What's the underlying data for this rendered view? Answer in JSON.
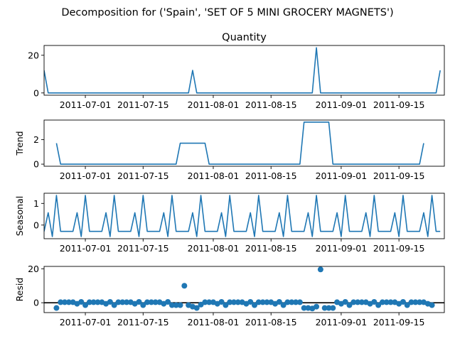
{
  "figure": {
    "suptitle": "Decomposition for ('Spain', 'SET OF 5 MINI GROCERY MAGNETS')"
  },
  "colors": {
    "line": "#1f77b4",
    "marker": "#1f77b4",
    "zero_line": "#000000",
    "axes": "#000000"
  },
  "chart_data": [
    {
      "type": "line",
      "title": "Quantity",
      "ylabel": "",
      "x_start": "2011-06-21",
      "x_step_days": 1,
      "xlim": [
        "2011-06-21",
        "2011-09-26"
      ],
      "ylim": [
        -1.2,
        25.2
      ],
      "yticks": [
        0,
        20
      ],
      "ytick_labels": [
        "0",
        "20"
      ],
      "xticks": [
        "2011-07-01",
        "2011-07-15",
        "2011-08-01",
        "2011-08-15",
        "2011-09-01",
        "2011-09-15"
      ],
      "xtick_labels": [
        "2011-07-01",
        "2011-07-15",
        "2011-08-01",
        "2011-08-15",
        "2011-09-01",
        "2011-09-15"
      ],
      "values": [
        12,
        0,
        0,
        0,
        0,
        0,
        0,
        0,
        0,
        0,
        0,
        0,
        0,
        0,
        0,
        0,
        0,
        0,
        0,
        0,
        0,
        0,
        0,
        0,
        0,
        0,
        0,
        0,
        0,
        0,
        0,
        0,
        0,
        0,
        0,
        0,
        12,
        0,
        0,
        0,
        0,
        0,
        0,
        0,
        0,
        0,
        0,
        0,
        0,
        0,
        0,
        0,
        0,
        0,
        0,
        0,
        0,
        0,
        0,
        0,
        0,
        0,
        0,
        0,
        0,
        0,
        24,
        0,
        0,
        0,
        0,
        0,
        0,
        0,
        0,
        0,
        0,
        0,
        0,
        0,
        0,
        0,
        0,
        0,
        0,
        0,
        0,
        0,
        0,
        0,
        0,
        0,
        0,
        0,
        0,
        0,
        12
      ]
    },
    {
      "type": "line",
      "title": "",
      "ylabel": "Trend",
      "x_start": "2011-06-21",
      "x_step_days": 1,
      "xlim": [
        "2011-06-21",
        "2011-09-26"
      ],
      "ylim": [
        -0.17,
        3.6
      ],
      "yticks": [
        0,
        2
      ],
      "ytick_labels": [
        "0",
        "2"
      ],
      "xticks": [
        "2011-07-01",
        "2011-07-15",
        "2011-08-01",
        "2011-08-15",
        "2011-09-01",
        "2011-09-15"
      ],
      "xtick_labels": [
        "2011-07-01",
        "2011-07-15",
        "2011-08-01",
        "2011-08-15",
        "2011-09-01",
        "2011-09-15"
      ],
      "values": [
        null,
        null,
        null,
        1.71,
        0,
        0,
        0,
        0,
        0,
        0,
        0,
        0,
        0,
        0,
        0,
        0,
        0,
        0,
        0,
        0,
        0,
        0,
        0,
        0,
        0,
        0,
        0,
        0,
        0,
        0,
        0,
        0,
        0,
        1.71,
        1.71,
        1.71,
        1.71,
        1.71,
        1.71,
        1.71,
        0,
        0,
        0,
        0,
        0,
        0,
        0,
        0,
        0,
        0,
        0,
        0,
        0,
        0,
        0,
        0,
        0,
        0,
        0,
        0,
        0,
        0,
        0,
        3.43,
        3.43,
        3.43,
        3.43,
        3.43,
        3.43,
        3.43,
        0,
        0,
        0,
        0,
        0,
        0,
        0,
        0,
        0,
        0,
        0,
        0,
        0,
        0,
        0,
        0,
        0,
        0,
        0,
        0,
        0,
        0,
        1.71,
        null,
        null,
        null
      ]
    },
    {
      "type": "line",
      "title": "",
      "ylabel": "Seasonal",
      "x_start": "2011-06-21",
      "x_step_days": 1,
      "xlim": [
        "2011-06-21",
        "2011-09-26"
      ],
      "ylim": [
        -0.63,
        1.47
      ],
      "yticks": [
        0,
        1
      ],
      "ytick_labels": [
        "0",
        "1"
      ],
      "xticks": [
        "2011-07-01",
        "2011-07-15",
        "2011-08-01",
        "2011-08-15",
        "2011-09-01",
        "2011-09-15"
      ],
      "xtick_labels": [
        "2011-07-01",
        "2011-07-15",
        "2011-08-01",
        "2011-08-15",
        "2011-09-01",
        "2011-09-15"
      ],
      "values": [
        -0.29,
        0.57,
        -0.53,
        1.37,
        -0.29,
        -0.29,
        -0.29,
        -0.29,
        0.57,
        -0.53,
        1.37,
        -0.29,
        -0.29,
        -0.29,
        -0.29,
        0.57,
        -0.53,
        1.37,
        -0.29,
        -0.29,
        -0.29,
        -0.29,
        0.57,
        -0.53,
        1.37,
        -0.29,
        -0.29,
        -0.29,
        -0.29,
        0.57,
        -0.53,
        1.37,
        -0.29,
        -0.29,
        -0.29,
        -0.29,
        0.57,
        -0.53,
        1.37,
        -0.29,
        -0.29,
        -0.29,
        -0.29,
        0.57,
        -0.53,
        1.37,
        -0.29,
        -0.29,
        -0.29,
        -0.29,
        0.57,
        -0.53,
        1.37,
        -0.29,
        -0.29,
        -0.29,
        -0.29,
        0.57,
        -0.53,
        1.37,
        -0.29,
        -0.29,
        -0.29,
        -0.29,
        0.57,
        -0.53,
        1.37,
        -0.29,
        -0.29,
        -0.29,
        -0.29,
        0.57,
        -0.53,
        1.37,
        -0.29,
        -0.29,
        -0.29,
        -0.29,
        0.57,
        -0.53,
        1.37,
        -0.29,
        -0.29,
        -0.29,
        -0.29,
        0.57,
        -0.53,
        1.37,
        -0.29,
        -0.29,
        -0.29,
        -0.29,
        0.57,
        -0.53,
        1.37,
        -0.29,
        -0.29
      ]
    },
    {
      "type": "scatter",
      "title": "",
      "ylabel": "Resid",
      "x_start": "2011-06-21",
      "x_step_days": 1,
      "xlim": [
        "2011-06-21",
        "2011-09-26"
      ],
      "ylim": [
        -5.8,
        21.4
      ],
      "yticks": [
        0,
        20
      ],
      "ytick_labels": [
        "0",
        "20"
      ],
      "xticks": [
        "2011-07-01",
        "2011-07-15",
        "2011-08-01",
        "2011-08-15",
        "2011-09-01",
        "2011-09-15"
      ],
      "xtick_labels": [
        "2011-07-01",
        "2011-07-15",
        "2011-08-01",
        "2011-08-15",
        "2011-09-01",
        "2011-09-15"
      ],
      "zero_line": true,
      "values": [
        null,
        null,
        null,
        -3.1,
        0.3,
        0.3,
        0.3,
        0.3,
        -0.6,
        0.5,
        -1.4,
        0.3,
        0.3,
        0.3,
        0.3,
        -0.6,
        0.5,
        -1.4,
        0.3,
        0.3,
        0.3,
        0.3,
        -0.6,
        0.5,
        -1.4,
        0.3,
        0.3,
        0.3,
        0.3,
        -0.6,
        0.5,
        -1.4,
        -1.4,
        -1.4,
        10.0,
        -1.4,
        -2.3,
        -3.1,
        -1.1,
        0.3,
        0.3,
        0.3,
        -0.6,
        0.5,
        -1.4,
        0.3,
        0.3,
        0.3,
        0.3,
        -0.6,
        0.5,
        -1.4,
        0.3,
        0.3,
        0.3,
        0.3,
        -0.6,
        0.5,
        -1.4,
        0.3,
        0.3,
        0.3,
        0.3,
        -3.1,
        -3.1,
        -3.4,
        -2.3,
        19.6,
        -3.1,
        -3.1,
        -3.1,
        0.3,
        -0.6,
        0.5,
        -1.4,
        0.3,
        0.3,
        0.3,
        0.3,
        -0.6,
        0.5,
        -1.4,
        0.3,
        0.3,
        0.3,
        0.3,
        -0.6,
        0.5,
        -1.4,
        0.3,
        0.3,
        0.3,
        0.3,
        -0.6,
        -1.4,
        null,
        null,
        null
      ]
    }
  ]
}
